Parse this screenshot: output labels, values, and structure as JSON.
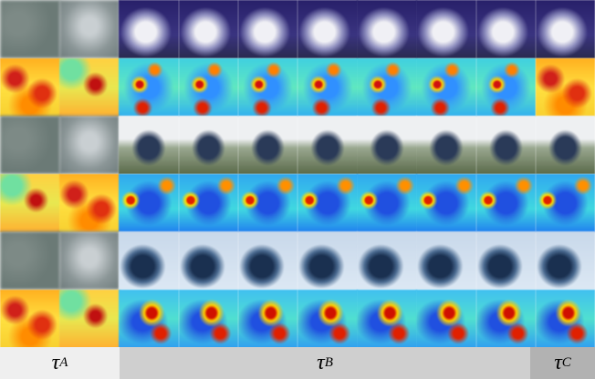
{
  "sections": [
    {
      "symbol": "τ",
      "subscript": "A"
    },
    {
      "symbol": "τ",
      "subscript": "B"
    },
    {
      "symbol": "τ",
      "subscript": "C"
    }
  ]
}
